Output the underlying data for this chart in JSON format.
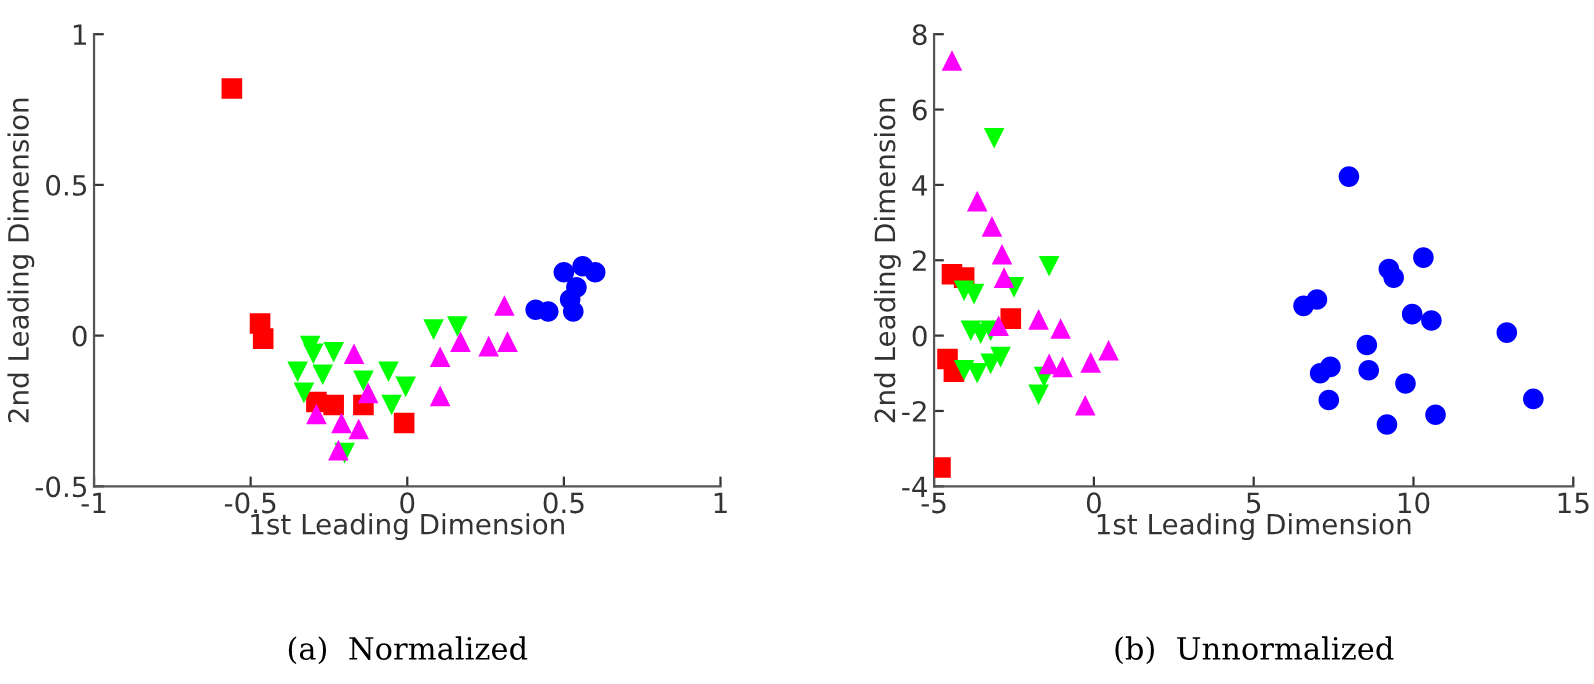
{
  "chart_data": [
    {
      "type": "scatter",
      "title": "(a)  Normalized",
      "xlabel": "1st Leading Dimension",
      "ylabel": "2nd Leading Dimension",
      "xlim": [
        -1,
        1
      ],
      "ylim": [
        -0.5,
        1
      ],
      "xticks": [
        -1,
        -0.5,
        0,
        0.5,
        1
      ],
      "yticks": [
        -0.5,
        0,
        0.5,
        1
      ],
      "grid": false,
      "legend": false,
      "series": [
        {
          "color": "#ff0000",
          "marker": "square",
          "x": [
            -0.56,
            -0.47,
            -0.46,
            -0.29,
            -0.235,
            -0.14,
            -0.01
          ],
          "values": [
            0.82,
            0.04,
            -0.01,
            -0.22,
            -0.23,
            -0.23,
            -0.29
          ]
        },
        {
          "color": "#00ff00",
          "marker": "triangle_down",
          "x": [
            -0.31,
            -0.3,
            -0.235,
            -0.35,
            -0.27,
            -0.33,
            -0.14,
            -0.06,
            -0.005,
            -0.05,
            0.084,
            0.16,
            -0.2
          ],
          "values": [
            -0.035,
            -0.06,
            -0.055,
            -0.12,
            -0.13,
            -0.19,
            -0.15,
            -0.12,
            -0.17,
            -0.23,
            0.02,
            0.03,
            -0.39
          ]
        },
        {
          "color": "#ff00ff",
          "marker": "triangle",
          "x": [
            -0.17,
            -0.125,
            -0.29,
            -0.21,
            -0.155,
            -0.22,
            0.105,
            0.105,
            0.17,
            0.26,
            0.32,
            0.31
          ],
          "values": [
            -0.06,
            -0.19,
            -0.26,
            -0.29,
            -0.31,
            -0.38,
            -0.07,
            -0.2,
            -0.02,
            -0.035,
            -0.02,
            0.1
          ]
        },
        {
          "color": "#0000ff",
          "marker": "circle",
          "x": [
            0.41,
            0.53,
            0.54,
            0.5,
            0.56,
            0.6,
            0.45,
            0.52
          ],
          "values": [
            0.086,
            0.08,
            0.16,
            0.21,
            0.23,
            0.21,
            0.08,
            0.12
          ]
        }
      ]
    },
    {
      "type": "scatter",
      "title": "(b)  Unnormalized",
      "xlabel": "1st Leading Dimension",
      "ylabel": "2nd Leading Dimension",
      "xlim": [
        -5,
        15
      ],
      "ylim": [
        -4,
        8
      ],
      "xticks": [
        -5,
        0,
        5,
        10,
        15
      ],
      "yticks": [
        -4,
        -2,
        0,
        2,
        4,
        6,
        8
      ],
      "grid": false,
      "legend": false,
      "series": [
        {
          "color": "#ff0000",
          "marker": "square",
          "x": [
            -4.8,
            -4.44,
            -4.06,
            -2.6,
            -4.58,
            -4.38
          ],
          "values": [
            -3.5,
            1.63,
            1.54,
            0.45,
            -0.62,
            -0.96
          ]
        },
        {
          "color": "#00ff00",
          "marker": "triangle_down",
          "x": [
            -3.12,
            -1.4,
            -4.06,
            -3.75,
            -2.5,
            -3.85,
            -3.54,
            -3.23,
            -4.06,
            -3.65,
            -3.23,
            -2.92,
            -1.73,
            -1.56
          ],
          "values": [
            5.24,
            1.84,
            1.19,
            1.1,
            1.28,
            0.13,
            0.05,
            0.13,
            -0.92,
            -1.0,
            -0.75,
            -0.57,
            -1.57,
            -1.1
          ]
        },
        {
          "color": "#ff00ff",
          "marker": "triangle",
          "x": [
            -4.44,
            -3.65,
            -3.19,
            -2.875,
            -2.81,
            -2.98,
            -1.73,
            -1.04,
            -1.4,
            -0.98,
            -0.1,
            0.46,
            -0.27
          ],
          "values": [
            7.3,
            3.57,
            2.9,
            2.16,
            1.54,
            0.26,
            0.43,
            0.19,
            -0.75,
            -0.83,
            -0.71,
            -0.39,
            -1.85
          ]
        },
        {
          "color": "#0000ff",
          "marker": "circle",
          "x": [
            7.98,
            6.56,
            6.98,
            9.23,
            9.38,
            10.31,
            9.96,
            10.56,
            12.92,
            13.75,
            8.54,
            8.6,
            9.75,
            10.69,
            9.17,
            7.35,
            7.4,
            7.08
          ],
          "values": [
            4.22,
            0.79,
            0.96,
            1.77,
            1.54,
            2.07,
            0.57,
            0.4,
            0.08,
            -1.68,
            -0.25,
            -0.92,
            -1.27,
            -2.1,
            -2.36,
            -1.71,
            -0.83,
            -1.0
          ]
        }
      ]
    }
  ]
}
